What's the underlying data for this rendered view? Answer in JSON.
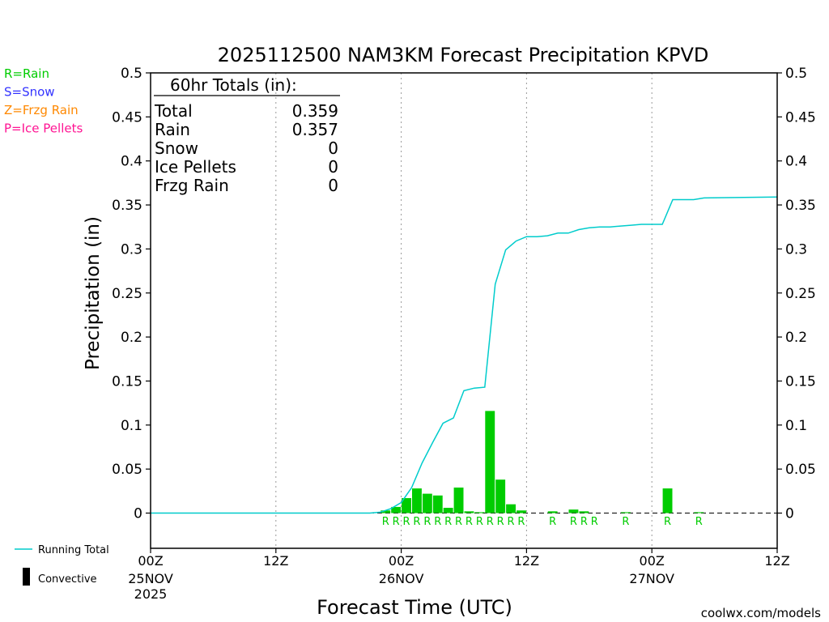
{
  "chart_data": {
    "type": "bar",
    "title": "2025112500 NAM3KM Forecast Precipitation KPVD",
    "xlabel": "Forecast Time (UTC)",
    "ylabel": "Precipitation (in)",
    "ylim": [
      -0.04,
      0.5
    ],
    "xlim_hours": [
      0,
      60
    ],
    "yticks": [
      "0.5",
      "0.45",
      "0.4",
      "0.35",
      "0.3",
      "0.25",
      "0.2",
      "0.15",
      "0.1",
      "0.05",
      "0"
    ],
    "ytick_values": [
      0.5,
      0.45,
      0.4,
      0.35,
      0.3,
      0.25,
      0.2,
      0.15,
      0.1,
      0.05,
      0
    ],
    "xticks": [
      {
        "hour": 0,
        "label": "00Z",
        "sub": "25NOV",
        "sub2": "2025"
      },
      {
        "hour": 12,
        "label": "12Z",
        "sub": "",
        "sub2": ""
      },
      {
        "hour": 24,
        "label": "00Z",
        "sub": "26NOV",
        "sub2": ""
      },
      {
        "hour": 36,
        "label": "12Z",
        "sub": "",
        "sub2": ""
      },
      {
        "hour": 48,
        "label": "00Z",
        "sub": "27NOV",
        "sub2": ""
      },
      {
        "hour": 60,
        "label": "12Z",
        "sub": "",
        "sub2": ""
      }
    ],
    "series": [
      {
        "name": "Hourly Rain",
        "color": "#00cc00",
        "hours": [
          23,
          24,
          25,
          26,
          27,
          28,
          29,
          30,
          31,
          32,
          33,
          34,
          35,
          36,
          39,
          41,
          42,
          46,
          50,
          53
        ],
        "values": [
          0.003,
          0.007,
          0.017,
          0.028,
          0.022,
          0.02,
          0.006,
          0.029,
          0.002,
          0.001,
          0.116,
          0.038,
          0.01,
          0.003,
          0.002,
          0.004,
          0.002,
          0.001,
          0.028,
          0.001
        ]
      },
      {
        "name": "Running Total",
        "color": "#00cccc",
        "hours": [
          0,
          21,
          22,
          23,
          24,
          25,
          26,
          27,
          28,
          29,
          30,
          31,
          32,
          33,
          34,
          35,
          36,
          37,
          38,
          39,
          40,
          41,
          42,
          43,
          44,
          45,
          46,
          47,
          48,
          49,
          50,
          51,
          52,
          53,
          60
        ],
        "values": [
          0,
          0,
          0.001,
          0.005,
          0.012,
          0.029,
          0.057,
          0.08,
          0.102,
          0.108,
          0.139,
          0.142,
          0.143,
          0.26,
          0.299,
          0.309,
          0.314,
          0.314,
          0.315,
          0.318,
          0.318,
          0.322,
          0.324,
          0.325,
          0.325,
          0.326,
          0.327,
          0.328,
          0.328,
          0.328,
          0.356,
          0.356,
          0.356,
          0.358,
          0.359
        ]
      }
    ],
    "ptype_markers": {
      "letter": "R",
      "color": "#00cc00",
      "hours": [
        22,
        23,
        24,
        25,
        26,
        27,
        28,
        29,
        30,
        31,
        32,
        33,
        34,
        35,
        38,
        40,
        41,
        42,
        45,
        49,
        52
      ]
    },
    "totals_box": {
      "heading": "60hr Totals (in):",
      "rows": [
        {
          "label": "Total",
          "value": "0.359"
        },
        {
          "label": "Rain",
          "value": "0.357"
        },
        {
          "label": "Snow",
          "value": "0"
        },
        {
          "label": "Ice Pellets",
          "value": "0"
        },
        {
          "label": "Frzg Rain",
          "value": "0"
        }
      ]
    },
    "type_legend": [
      {
        "text": "R=Rain",
        "color": "#00cc00"
      },
      {
        "text": "S=Snow",
        "color": "#3333ff"
      },
      {
        "text": "Z=Frzg Rain",
        "color": "#ff8800"
      },
      {
        "text": "P=Ice Pellets",
        "color": "#ff1493"
      }
    ],
    "line_legend": [
      {
        "text": "Running Total",
        "color": "#00cccc",
        "kind": "line"
      },
      {
        "text": "Convective",
        "color": "#000000",
        "kind": "bar"
      }
    ],
    "credit": "coolwx.com/models",
    "credit_color": "#cc0000"
  }
}
